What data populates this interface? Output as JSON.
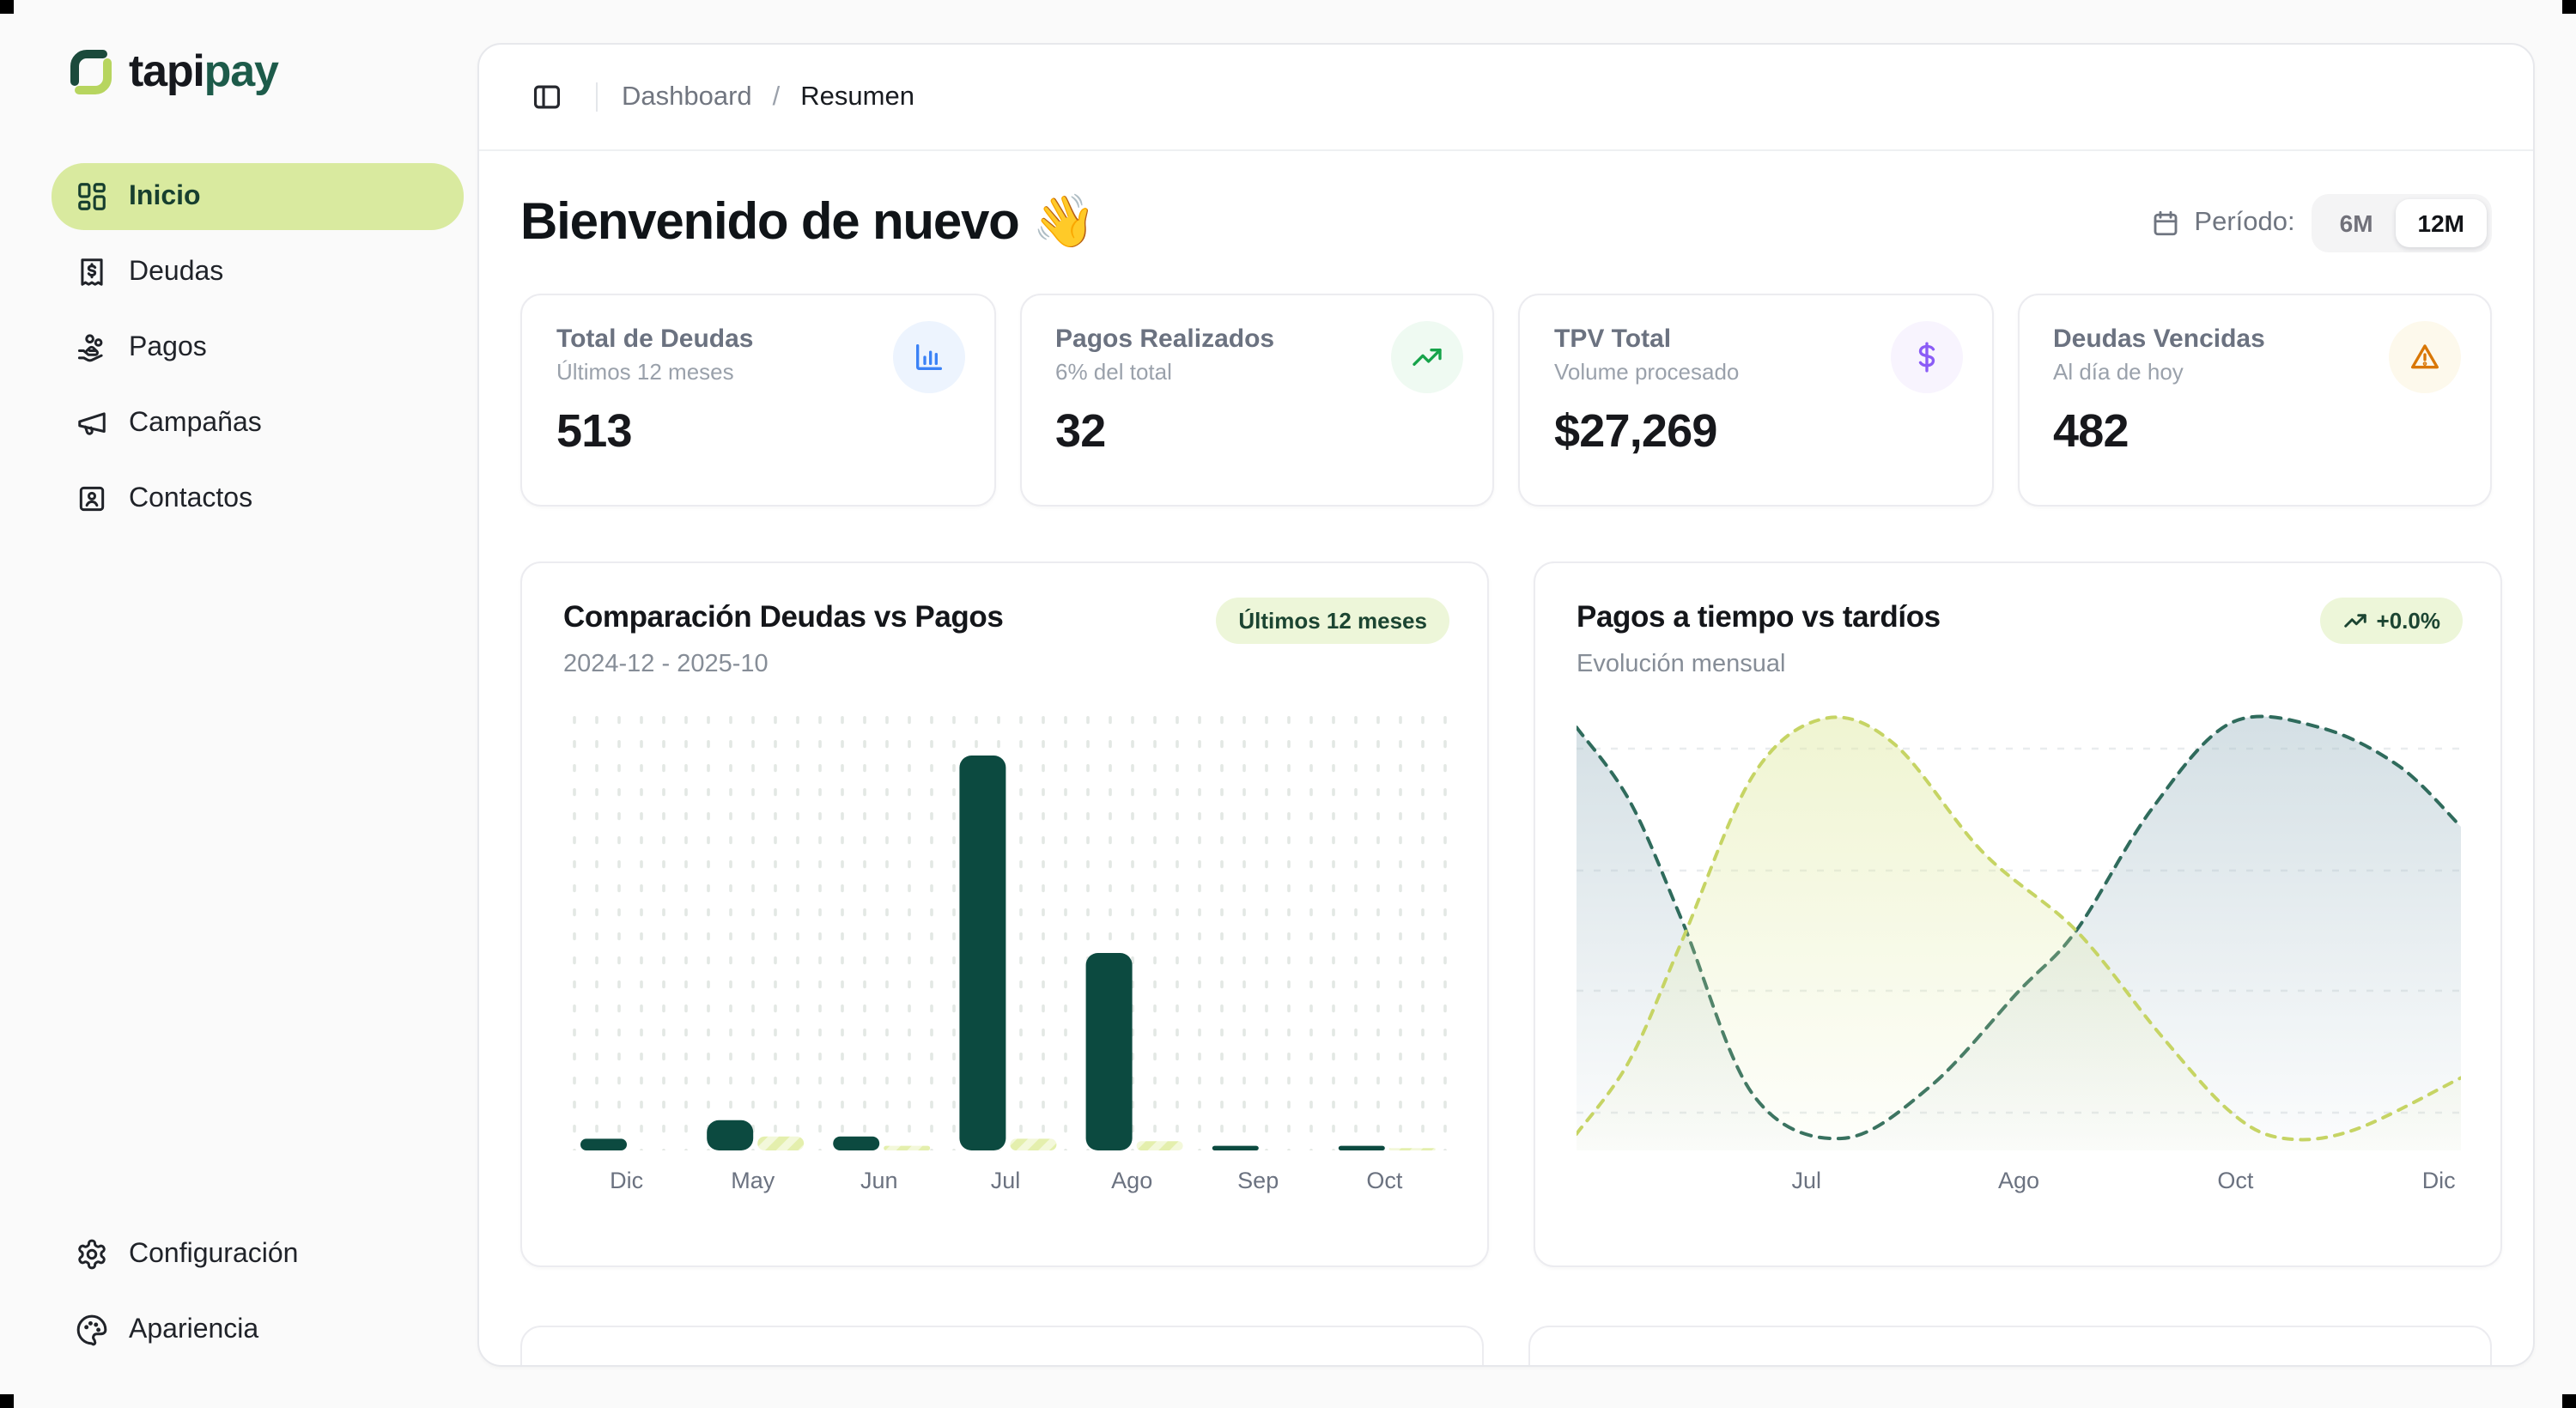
{
  "sidebar": {
    "logo": {
      "brand_prefix": "tapi",
      "brand_suffix": "pay"
    },
    "items": [
      {
        "label": "Inicio",
        "icon": "dashboard-grid",
        "active": true
      },
      {
        "label": "Deudas",
        "icon": "receipt-dollar",
        "active": false
      },
      {
        "label": "Pagos",
        "icon": "hand-coins",
        "active": false
      },
      {
        "label": "Campañas",
        "icon": "megaphone",
        "active": false
      },
      {
        "label": "Contactos",
        "icon": "contact-card",
        "active": false
      }
    ],
    "footer_items": [
      {
        "label": "Configuración",
        "icon": "gear"
      },
      {
        "label": "Apariencia",
        "icon": "palette"
      }
    ]
  },
  "header": {
    "toggle_icon": "panel-left",
    "breadcrumb_section": "Dashboard",
    "breadcrumb_separator": "/",
    "breadcrumb_page": "Resumen"
  },
  "main": {
    "greeting": "Bienvenido de nuevo 👋",
    "period": {
      "icon": "calendar",
      "label": "Período:",
      "options": [
        "6M",
        "12M"
      ],
      "selected": "12M"
    },
    "stats": [
      {
        "title": "Total de Deudas",
        "subtitle": "Últimos 12 meses",
        "value": "513",
        "icon": "bar-chart",
        "icon_color": "#3b82f6",
        "icon_bg": "#edf4fe"
      },
      {
        "title": "Pagos Realizados",
        "subtitle": "6% del total",
        "value": "32",
        "icon": "trending-up",
        "icon_color": "#16a34a",
        "icon_bg": "#effaf2"
      },
      {
        "title": "TPV Total",
        "subtitle": "Volume procesado",
        "value": "$27,269",
        "icon": "dollar-sign",
        "icon_color": "#8b5cf6",
        "icon_bg": "#f8f4fe"
      },
      {
        "title": "Deudas Vencidas",
        "subtitle": "Al día de hoy",
        "value": "482",
        "icon": "warning-triangle",
        "icon_color": "#d97706",
        "icon_bg": "#fdf9ec"
      }
    ]
  },
  "chart_data": [
    {
      "type": "bar",
      "title": "Comparación Deudas vs Pagos",
      "subtitle": "2024-12 - 2025-10",
      "badge": "Últimos 12 meses",
      "categories": [
        "Dic",
        "May",
        "Jun",
        "Jul",
        "Ago",
        "Sep",
        "Oct"
      ],
      "series": [
        {
          "name": "Deudas",
          "color": "#0c4a40",
          "values": [
            5,
            13,
            6,
            170,
            85,
            2,
            2
          ]
        },
        {
          "name": "Pagos",
          "color": "#e4efad",
          "pattern": "diagonal-hatch",
          "values": [
            0,
            6,
            2,
            5,
            4,
            0,
            1
          ]
        }
      ],
      "ylim": [
        0,
        180
      ],
      "ylabel": "",
      "grid": "dotted"
    },
    {
      "type": "area",
      "title": "Pagos a tiempo vs tardíos",
      "subtitle": "Evolución mensual",
      "badge": "+0.0%",
      "badge_icon": "trending-up",
      "x_labels": [
        {
          "label": "Jul",
          "x": 0.26
        },
        {
          "label": "Ago",
          "x": 0.5
        },
        {
          "label": "Oct",
          "x": 0.745
        },
        {
          "label": "Dic",
          "x": 0.975
        }
      ],
      "series": [
        {
          "name": "Tardíos",
          "style": "dashed",
          "color": "#2f6b5c",
          "fill": "#a9c0ca",
          "points": [
            [
              0,
              97
            ],
            [
              0.06,
              80
            ],
            [
              0.12,
              52
            ],
            [
              0.2,
              12
            ],
            [
              0.3,
              2
            ],
            [
              0.4,
              14
            ],
            [
              0.5,
              36
            ],
            [
              0.565,
              50
            ],
            [
              0.65,
              78
            ],
            [
              0.74,
              98
            ],
            [
              0.84,
              97
            ],
            [
              0.93,
              88
            ],
            [
              1,
              74
            ]
          ]
        },
        {
          "name": "A tiempo",
          "style": "dashed",
          "color": "#c6d464",
          "fill": "#e0eaa4",
          "points": [
            [
              0,
              3
            ],
            [
              0.06,
              20
            ],
            [
              0.12,
              48
            ],
            [
              0.2,
              86
            ],
            [
              0.28,
              99
            ],
            [
              0.36,
              93
            ],
            [
              0.46,
              68
            ],
            [
              0.565,
              50
            ],
            [
              0.66,
              26
            ],
            [
              0.74,
              8
            ],
            [
              0.8,
              2
            ],
            [
              0.88,
              4
            ],
            [
              1,
              16
            ]
          ]
        }
      ],
      "ylim": [
        0,
        100
      ],
      "grid": "dashed-horizontal"
    }
  ]
}
